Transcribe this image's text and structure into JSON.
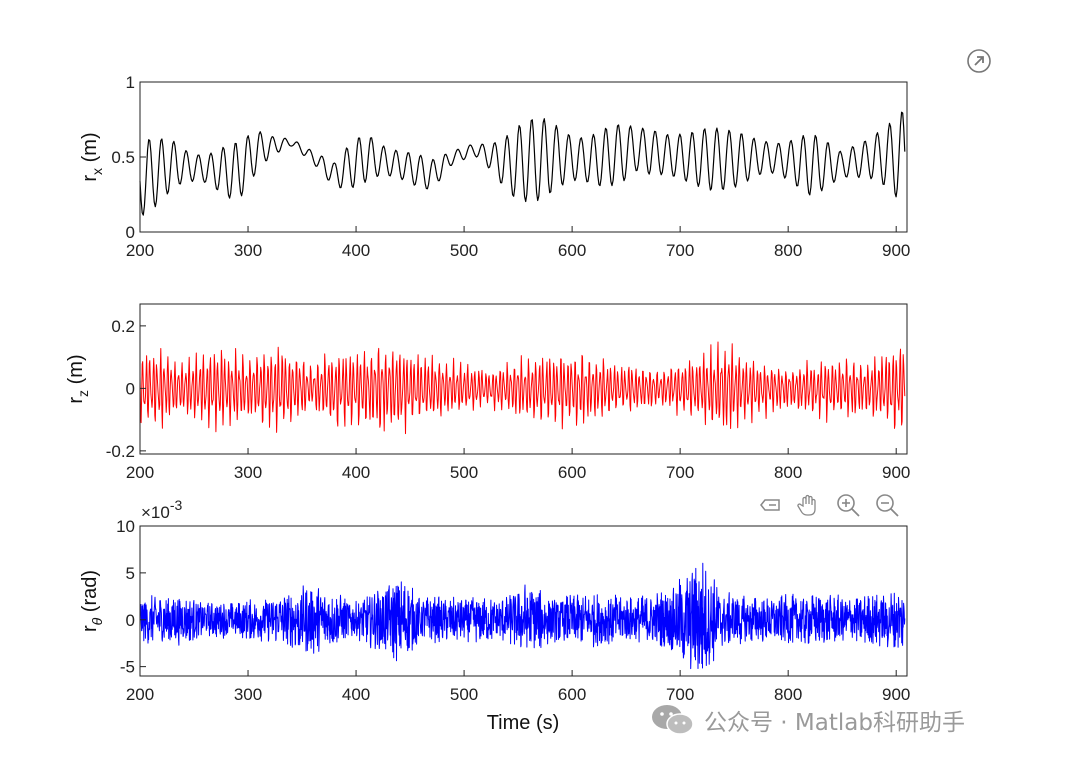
{
  "toolbar": {
    "export_icon": "export-arrow-icon",
    "icons": [
      "restore-view-icon",
      "pan-hand-icon",
      "zoom-in-icon",
      "zoom-out-icon"
    ]
  },
  "watermark": {
    "icon": "wechat-icon",
    "text": "公众号 · Matlab科研助手"
  },
  "chart_data": [
    {
      "type": "line",
      "title": "",
      "xlabel": "",
      "ylabel_main": "r",
      "ylabel_sub": "x",
      "ylabel_unit": "(m)",
      "xlim": [
        200,
        910
      ],
      "ylim": [
        0,
        1
      ],
      "xticks": [
        "200",
        "300",
        "400",
        "500",
        "600",
        "700",
        "800",
        "900"
      ],
      "yticks": [
        "0",
        "0.5",
        "1"
      ],
      "grid": false,
      "series": [
        {
          "color": "#000000",
          "envelope_t": [
            200,
            230,
            260,
            290,
            310,
            340,
            360,
            380,
            410,
            440,
            470,
            490,
            510,
            540,
            580,
            620,
            660,
            700,
            740,
            780,
            820,
            850,
            880,
            905
          ],
          "envelope_center": [
            0.35,
            0.45,
            0.42,
            0.4,
            0.55,
            0.6,
            0.5,
            0.38,
            0.5,
            0.45,
            0.38,
            0.5,
            0.55,
            0.45,
            0.5,
            0.48,
            0.55,
            0.5,
            0.48,
            0.5,
            0.45,
            0.45,
            0.5,
            0.5
          ],
          "envelope_amp": [
            0.25,
            0.25,
            0.15,
            0.2,
            0.15,
            0.05,
            0.05,
            0.08,
            0.25,
            0.15,
            0.1,
            0.05,
            0.08,
            0.25,
            0.3,
            0.28,
            0.15,
            0.3,
            0.2,
            0.2,
            0.22,
            0.1,
            0.3,
            0.35
          ]
        }
      ]
    },
    {
      "type": "line",
      "title": "",
      "xlabel": "",
      "ylabel_main": "r",
      "ylabel_sub": "z",
      "ylabel_unit": "(m)",
      "xlim": [
        200,
        910
      ],
      "ylim": [
        -0.21,
        0.27
      ],
      "xticks": [
        "200",
        "300",
        "400",
        "500",
        "600",
        "700",
        "800",
        "900"
      ],
      "yticks": [
        "-0.2",
        "0",
        "0.2"
      ],
      "grid": false,
      "series": [
        {
          "color": "#ff0000",
          "envelope_t": [
            200,
            220,
            240,
            270,
            300,
            330,
            360,
            380,
            410,
            430,
            460,
            490,
            520,
            560,
            600,
            640,
            680,
            720,
            740,
            760,
            800,
            840,
            870,
            905
          ],
          "envelope_amp": [
            0.13,
            0.15,
            0.1,
            0.16,
            0.12,
            0.17,
            0.08,
            0.16,
            0.15,
            0.18,
            0.13,
            0.1,
            0.07,
            0.12,
            0.15,
            0.1,
            0.07,
            0.13,
            0.18,
            0.12,
            0.08,
            0.12,
            0.1,
            0.17
          ]
        }
      ]
    },
    {
      "type": "line",
      "title": "",
      "xlabel": "Time (s)",
      "ylabel_main": "r",
      "ylabel_sub": "θ",
      "ylabel_unit": "(rad)",
      "exponent_label": "×10",
      "exponent_power": "-3",
      "xlim": [
        200,
        910
      ],
      "ylim": [
        -6,
        10
      ],
      "xticks": [
        "200",
        "300",
        "400",
        "500",
        "600",
        "700",
        "800",
        "900"
      ],
      "yticks": [
        "-5",
        "0",
        "5",
        "10"
      ],
      "grid": false,
      "series": [
        {
          "color": "#0000ff",
          "envelope_t": [
            200,
            230,
            260,
            290,
            320,
            360,
            380,
            400,
            420,
            440,
            460,
            500,
            540,
            560,
            580,
            620,
            660,
            690,
            710,
            720,
            740,
            780,
            820,
            860,
            905
          ],
          "envelope_amp": [
            2.5,
            3.0,
            2.0,
            2.0,
            2.5,
            4.0,
            3.0,
            2.0,
            3.5,
            5.0,
            2.5,
            2.5,
            2.5,
            4.5,
            2.5,
            3.0,
            2.5,
            3.5,
            6.0,
            7.0,
            3.0,
            2.5,
            3.0,
            2.5,
            3.5
          ]
        }
      ]
    }
  ]
}
